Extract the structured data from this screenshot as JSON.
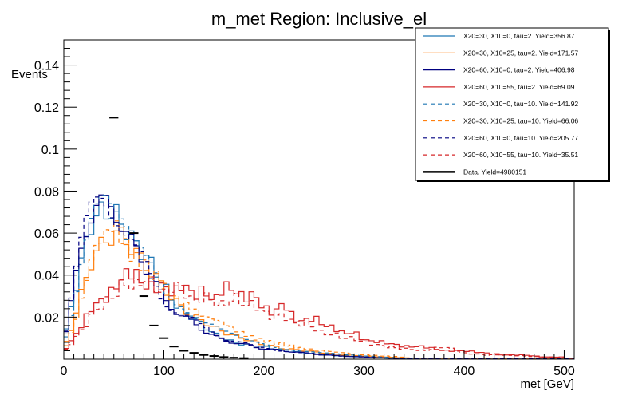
{
  "chart_data": {
    "type": "line",
    "title": "m_met Region: Inclusive_el",
    "xlabel": "met [GeV]",
    "ylabel": "Events",
    "xlim": [
      0,
      510
    ],
    "ylim": [
      0,
      0.152
    ],
    "xticks": [
      "0",
      "100",
      "200",
      "300",
      "400",
      "500"
    ],
    "yticks": [
      "0.02",
      "0.04",
      "0.06",
      "0.08",
      "0.1",
      "0.12",
      "0.14"
    ],
    "bin_width": 5,
    "legend_position": "top-right",
    "series": [
      {
        "name": "X20=30, X10=0, tau=2. Yield=356.87",
        "color": "#1f77b4",
        "dash": false,
        "x": [
          0,
          10,
          20,
          30,
          40,
          50,
          60,
          70,
          80,
          90,
          100,
          110,
          120,
          130,
          140,
          150,
          160,
          170,
          180,
          190,
          200,
          220,
          240,
          260,
          280,
          300,
          320,
          340,
          360
        ],
        "y": [
          0.008,
          0.03,
          0.052,
          0.068,
          0.07,
          0.07,
          0.063,
          0.056,
          0.05,
          0.044,
          0.035,
          0.027,
          0.022,
          0.02,
          0.016,
          0.012,
          0.01,
          0.008,
          0.007,
          0.006,
          0.006,
          0.004,
          0.003,
          0.002,
          0.0015,
          0.001,
          0.0006,
          0.0003,
          0.0002
        ]
      },
      {
        "name": "X20=30, X10=25, tau=2. Yield=171.57",
        "color": "#ff7f0e",
        "dash": false,
        "x": [
          0,
          10,
          20,
          30,
          40,
          50,
          60,
          70,
          80,
          90,
          100,
          110,
          120,
          130,
          140,
          150,
          160,
          170,
          180,
          190,
          200,
          220,
          240,
          260,
          280,
          300,
          320,
          340,
          360
        ],
        "y": [
          0.005,
          0.018,
          0.035,
          0.05,
          0.055,
          0.06,
          0.058,
          0.052,
          0.046,
          0.04,
          0.034,
          0.028,
          0.024,
          0.02,
          0.018,
          0.015,
          0.013,
          0.011,
          0.01,
          0.008,
          0.007,
          0.005,
          0.004,
          0.003,
          0.002,
          0.0015,
          0.001,
          0.0006,
          0.0004
        ]
      },
      {
        "name": "X20=60, X10=0, tau=2. Yield=406.98",
        "color": "#000080",
        "dash": false,
        "x": [
          0,
          10,
          20,
          30,
          40,
          50,
          60,
          70,
          80,
          90,
          100,
          110,
          120,
          130,
          140,
          150,
          160,
          170,
          180,
          190,
          200,
          220,
          240,
          260,
          280,
          300,
          320,
          340,
          360
        ],
        "y": [
          0.007,
          0.033,
          0.058,
          0.074,
          0.073,
          0.073,
          0.062,
          0.053,
          0.046,
          0.038,
          0.028,
          0.024,
          0.02,
          0.017,
          0.014,
          0.011,
          0.009,
          0.008,
          0.007,
          0.006,
          0.005,
          0.004,
          0.003,
          0.002,
          0.0015,
          0.001,
          0.0006,
          0.0003,
          0.0002
        ]
      },
      {
        "name": "X20=60, X10=55, tau=2. Yield=69.09",
        "color": "#d62728",
        "dash": false,
        "x": [
          0,
          10,
          20,
          30,
          40,
          50,
          60,
          70,
          80,
          90,
          100,
          110,
          120,
          130,
          140,
          150,
          160,
          170,
          180,
          190,
          200,
          210,
          220,
          230,
          240,
          250,
          260,
          270,
          280,
          290,
          300,
          320,
          340,
          360,
          380,
          400,
          420,
          440,
          460,
          480,
          500
        ],
        "y": [
          0.004,
          0.01,
          0.018,
          0.026,
          0.028,
          0.033,
          0.04,
          0.042,
          0.035,
          0.034,
          0.035,
          0.031,
          0.036,
          0.03,
          0.033,
          0.027,
          0.035,
          0.033,
          0.029,
          0.031,
          0.024,
          0.022,
          0.027,
          0.019,
          0.018,
          0.02,
          0.016,
          0.015,
          0.012,
          0.013,
          0.009,
          0.008,
          0.006,
          0.006,
          0.004,
          0.004,
          0.003,
          0.002,
          0.002,
          0.001,
          0.001
        ]
      },
      {
        "name": "X20=30, X10=0, tau=10. Yield=141.92",
        "color": "#1f77b4",
        "dash": true,
        "x": [
          0,
          10,
          20,
          30,
          40,
          50,
          60,
          70,
          80,
          90,
          100,
          110,
          120,
          130,
          140,
          150,
          160,
          170,
          180,
          190,
          200,
          220,
          240,
          260,
          280,
          300,
          320,
          340
        ],
        "y": [
          0.006,
          0.028,
          0.055,
          0.074,
          0.078,
          0.068,
          0.06,
          0.054,
          0.049,
          0.044,
          0.034,
          0.029,
          0.025,
          0.021,
          0.018,
          0.016,
          0.013,
          0.011,
          0.009,
          0.008,
          0.007,
          0.005,
          0.004,
          0.003,
          0.002,
          0.0015,
          0.001,
          0.0005
        ]
      },
      {
        "name": "X20=30, X10=25, tau=10. Yield=66.06",
        "color": "#ff7f0e",
        "dash": true,
        "x": [
          0,
          10,
          20,
          30,
          40,
          50,
          60,
          70,
          80,
          90,
          100,
          110,
          120,
          130,
          140,
          150,
          160,
          170,
          180,
          190,
          200,
          220,
          240,
          260,
          280,
          300,
          320,
          340
        ],
        "y": [
          0.004,
          0.015,
          0.033,
          0.052,
          0.058,
          0.065,
          0.056,
          0.048,
          0.045,
          0.04,
          0.035,
          0.029,
          0.026,
          0.024,
          0.02,
          0.019,
          0.017,
          0.014,
          0.012,
          0.01,
          0.009,
          0.007,
          0.005,
          0.004,
          0.003,
          0.002,
          0.0015,
          0.001
        ]
      },
      {
        "name": "X20=60, X10=0, tau=10. Yield=205.77",
        "color": "#000080",
        "dash": true,
        "x": [
          0,
          10,
          20,
          30,
          40,
          50,
          60,
          70,
          80,
          90,
          100,
          110,
          120,
          130,
          140,
          150,
          160,
          170,
          180,
          190,
          200,
          220,
          240,
          260,
          280,
          300,
          320,
          340
        ],
        "y": [
          0.006,
          0.035,
          0.06,
          0.077,
          0.082,
          0.07,
          0.06,
          0.052,
          0.046,
          0.038,
          0.028,
          0.024,
          0.021,
          0.018,
          0.015,
          0.012,
          0.01,
          0.009,
          0.008,
          0.006,
          0.005,
          0.004,
          0.003,
          0.002,
          0.0015,
          0.001,
          0.0006,
          0.0003
        ]
      },
      {
        "name": "X20=60, X10=55, tau=10. Yield=35.51",
        "color": "#d62728",
        "dash": true,
        "x": [
          0,
          10,
          20,
          30,
          40,
          50,
          60,
          70,
          80,
          90,
          100,
          110,
          120,
          130,
          140,
          150,
          160,
          170,
          180,
          190,
          200,
          210,
          220,
          230,
          240,
          250,
          260,
          270,
          280,
          290,
          300,
          320,
          340,
          360,
          380,
          400,
          420,
          440,
          460,
          480,
          500
        ],
        "y": [
          0.003,
          0.009,
          0.015,
          0.022,
          0.027,
          0.03,
          0.037,
          0.034,
          0.038,
          0.036,
          0.03,
          0.036,
          0.033,
          0.027,
          0.03,
          0.028,
          0.025,
          0.03,
          0.026,
          0.026,
          0.022,
          0.02,
          0.021,
          0.017,
          0.017,
          0.015,
          0.012,
          0.012,
          0.01,
          0.01,
          0.008,
          0.006,
          0.005,
          0.004,
          0.006,
          0.003,
          0.002,
          0.002,
          0.0015,
          0.001,
          0.001
        ]
      },
      {
        "name": "Data. Yield=4980151",
        "color": "#000000",
        "dash": false,
        "markers": true,
        "x": [
          50,
          70,
          80,
          90,
          100,
          110,
          120,
          130,
          140,
          150,
          160,
          170,
          180
        ],
        "y": [
          0.115,
          0.06,
          0.03,
          0.016,
          0.01,
          0.006,
          0.004,
          0.003,
          0.002,
          0.0015,
          0.001,
          0.0007,
          0.0005
        ]
      }
    ]
  }
}
